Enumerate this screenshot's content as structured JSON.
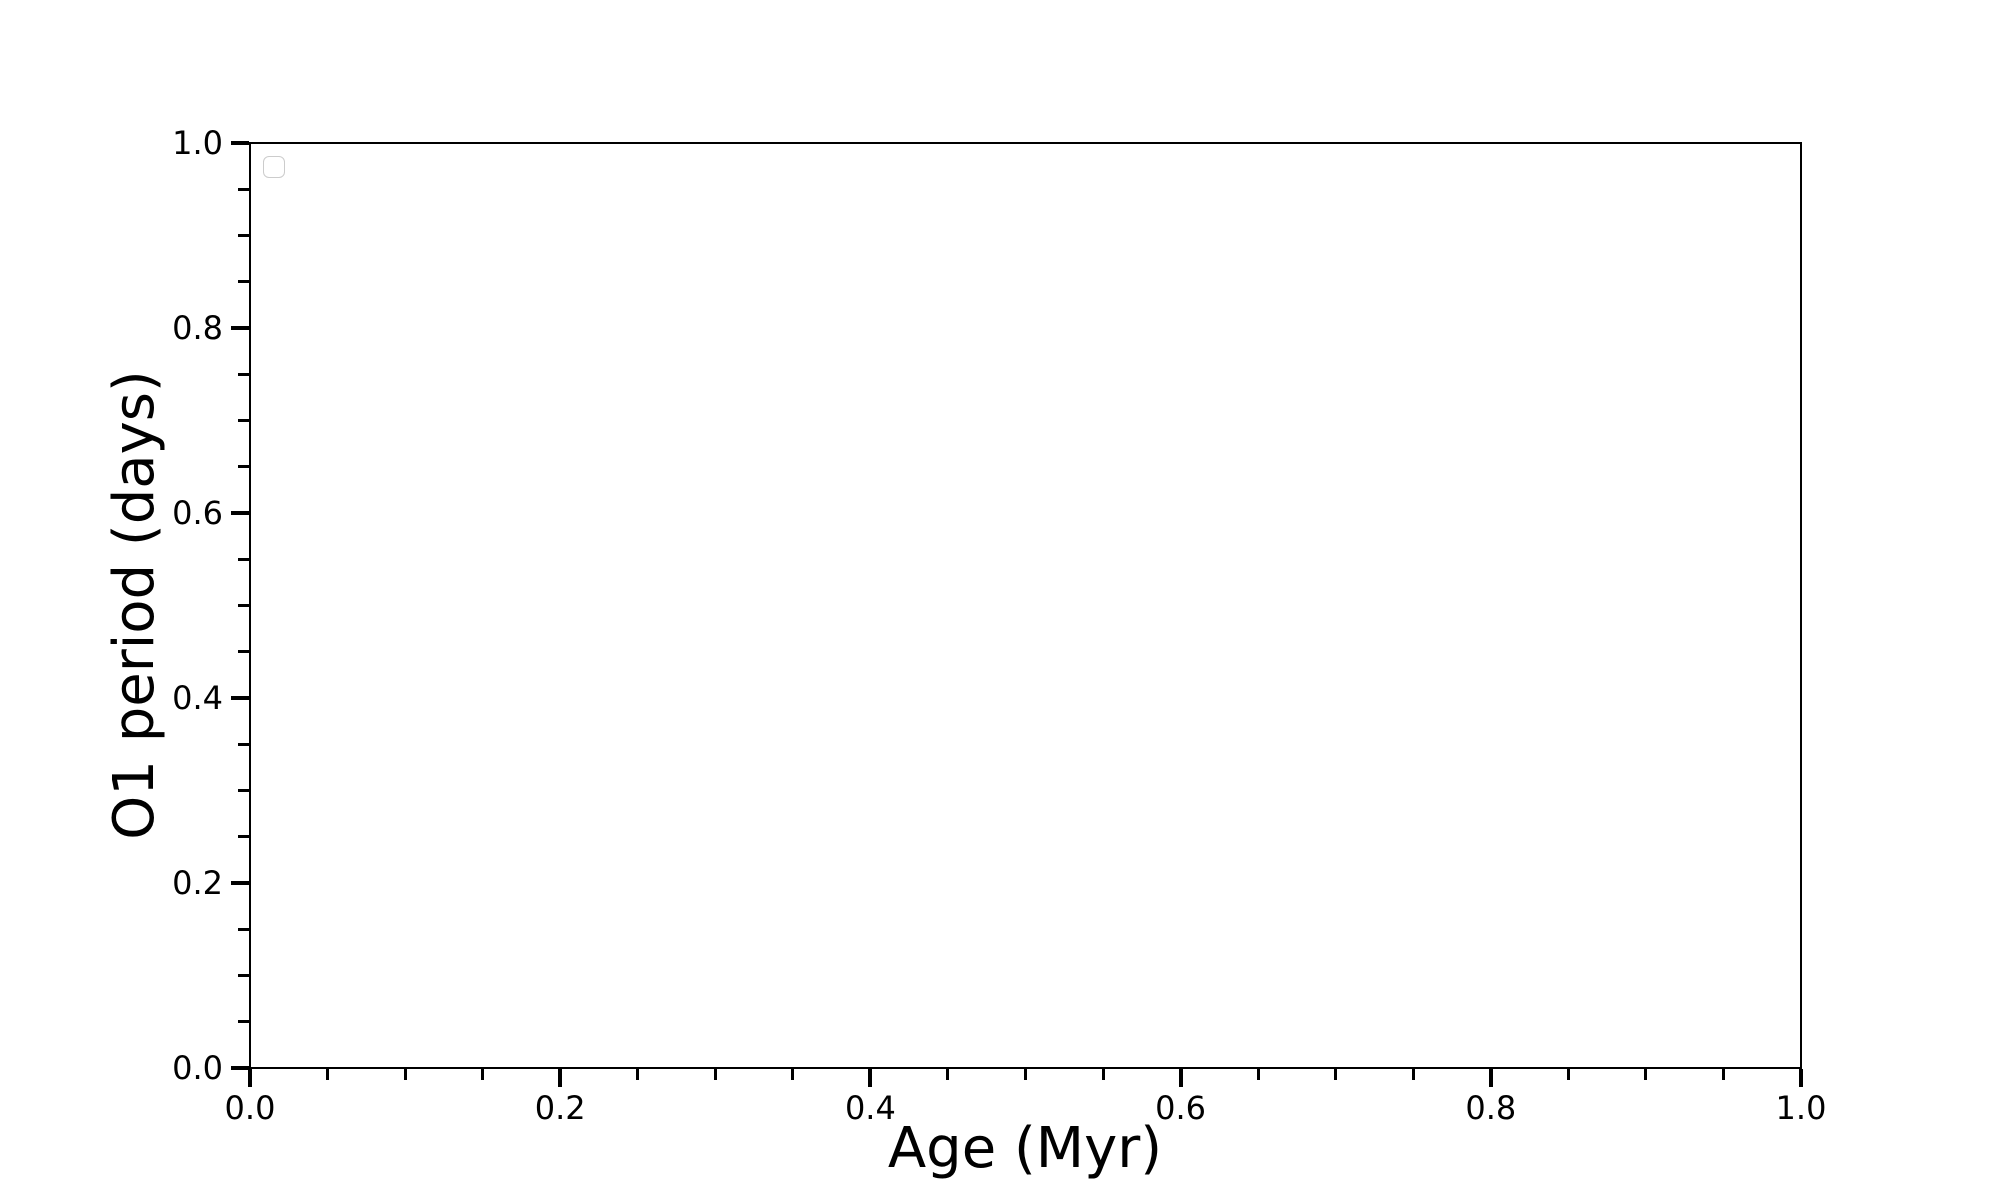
{
  "figure": {
    "background": "#ffffff"
  },
  "chart_data": {
    "type": "scatter",
    "title": "",
    "xlabel": "Age (Myr)",
    "ylabel": "O1 period (days)",
    "xlim": [
      0.0,
      1.0
    ],
    "ylim": [
      0.0,
      1.0
    ],
    "x_major_ticks": [
      0.0,
      0.2,
      0.4,
      0.6,
      0.8,
      1.0
    ],
    "x_major_tick_labels": [
      "0.0",
      "0.2",
      "0.4",
      "0.6",
      "0.8",
      "1.0"
    ],
    "y_major_ticks": [
      0.0,
      0.2,
      0.4,
      0.6,
      0.8,
      1.0
    ],
    "y_major_tick_labels": [
      "0.0",
      "0.2",
      "0.4",
      "0.6",
      "0.8",
      "1.0"
    ],
    "minor_tick_step": 0.05,
    "grid": false,
    "legend": {
      "visible": true,
      "position": "upper left",
      "entries": []
    },
    "series": []
  },
  "colors": {
    "axis": "#000000",
    "text": "#000000",
    "background": "#ffffff",
    "legend_border": "#cccccc"
  }
}
